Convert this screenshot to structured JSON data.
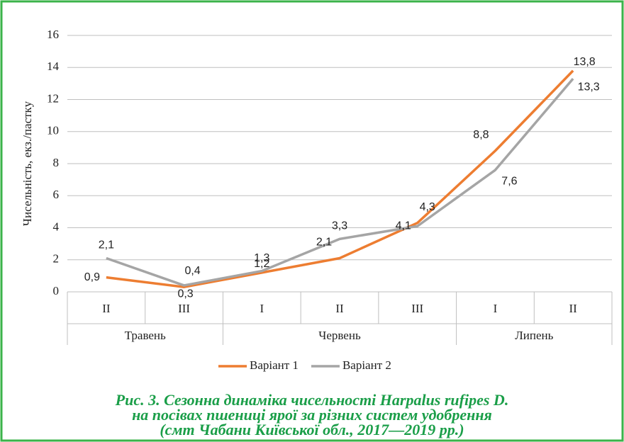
{
  "chart_data": {
    "type": "line",
    "ylabel": "Чисельність, екз./пастку",
    "groups": [
      {
        "name": "Травень",
        "categories": [
          "II",
          "III"
        ]
      },
      {
        "name": "Червень",
        "categories": [
          "I",
          "II",
          "III"
        ]
      },
      {
        "name": "Липень",
        "categories": [
          "I",
          "II"
        ]
      }
    ],
    "series": [
      {
        "name": "Варіант 1",
        "color": "#ed7d31",
        "values": [
          0.9,
          0.3,
          1.2,
          2.1,
          4.3,
          8.8,
          13.8
        ],
        "value_labels": [
          "0,9",
          "0,3",
          "1,2",
          "2,1",
          "4,3",
          "8,8",
          "13,8"
        ]
      },
      {
        "name": "Варіант 2",
        "color": "#a5a5a5",
        "values": [
          2.1,
          0.4,
          1.3,
          3.3,
          4.1,
          7.6,
          13.3
        ],
        "value_labels": [
          "2,1",
          "0,4",
          "1,3",
          "3,3",
          "4,1",
          "7,6",
          "13,3"
        ]
      }
    ],
    "ylim": [
      0,
      16
    ],
    "yticks": [
      0,
      2,
      4,
      6,
      8,
      10,
      12,
      14,
      16
    ],
    "grid": true,
    "legend": "bottom",
    "caption": [
      "Рис. 3. Сезонна динаміка чисельності Harpalus rufipes D.",
      "на посівах пшениці ярої за різних систем удобрення",
      "(смт Чабани Київської обл., 2017—2019 рр.)"
    ]
  }
}
